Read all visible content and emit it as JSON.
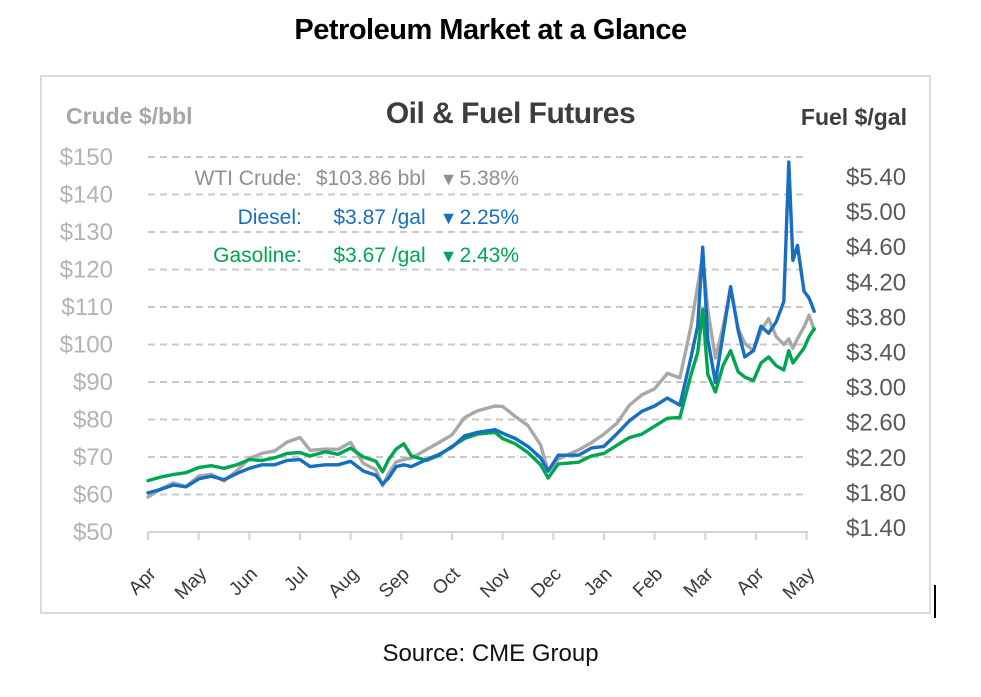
{
  "page": {
    "title": "Petroleum Market at a Glance",
    "source": "Source: CME Group"
  },
  "chart": {
    "title": "Oil & Fuel Futures",
    "left_axis_title": "Crude $/bbl",
    "right_axis_title": "Fuel $/gal",
    "legend": [
      {
        "name": "WTI Crude:",
        "value": "$103.86 bbl",
        "arrow": "▼",
        "change": "5.38%",
        "color": "#8f8f8f"
      },
      {
        "name": "Diesel:",
        "value": "$3.87 /gal",
        "arrow": "▼",
        "change": "2.25%",
        "color": "#176fc1"
      },
      {
        "name": "Gasoline:",
        "value": "$3.67 /gal",
        "arrow": "▼",
        "change": "2.43%",
        "color": "#00a551"
      }
    ]
  },
  "chart_data": {
    "type": "line",
    "title": "Oil & Fuel Futures",
    "subtitle": "Petroleum Market at a Glance",
    "source": "Source: CME Group",
    "x_tick_labels": [
      "Apr",
      "May",
      "Jun",
      "Jul",
      "Aug",
      "Sep",
      "Oct",
      "Nov",
      "Dec",
      "Jan",
      "Feb",
      "Mar",
      "Apr",
      "May"
    ],
    "x_unit": "months (Apr 2021 – May 2022)",
    "left_axis": {
      "label": "Crude $/bbl",
      "min": 50,
      "max": 150,
      "grid": true,
      "ticks": [
        "$150",
        "$140",
        "$130",
        "$120",
        "$110",
        "$100",
        "$90",
        "$80",
        "$70",
        "$60",
        "$50"
      ]
    },
    "right_axis": {
      "label": "Fuel $/gal",
      "min": 1.4,
      "max": 5.4,
      "ticks": [
        "$5.40",
        "$5.00",
        "$4.60",
        "$4.20",
        "$3.80",
        "$3.40",
        "$3.00",
        "$2.60",
        "$2.20",
        "$1.80",
        "$1.40"
      ]
    },
    "colors": {
      "wti": "#a8a8a8",
      "diesel": "#176fc1",
      "gasoline": "#00a551",
      "grid": "#c9c9c9",
      "axis": "#d4d4d4"
    },
    "x_months": [
      0,
      0.25,
      0.5,
      0.75,
      1,
      1.25,
      1.5,
      1.75,
      2,
      2.25,
      2.5,
      2.75,
      3,
      3.2,
      3.5,
      3.75,
      4,
      4.25,
      4.5,
      4.63,
      4.75,
      4.9,
      5.05,
      5.2,
      5.5,
      5.75,
      6,
      6.25,
      6.5,
      6.85,
      7,
      7.25,
      7.5,
      7.75,
      7.9,
      8.1,
      8.5,
      8.75,
      9,
      9.25,
      9.5,
      9.75,
      10,
      10.25,
      10.5,
      10.72,
      10.85,
      10.95,
      11.05,
      11.2,
      11.35,
      11.5,
      11.65,
      11.78,
      11.95,
      12.1,
      12.25,
      12.4,
      12.55,
      12.65,
      12.73,
      12.82,
      12.95,
      13.05,
      13.15
    ],
    "series": [
      {
        "name": "WTI Crude",
        "axis": "left",
        "unit": "$/bbl",
        "last": 103.86,
        "change_pct": -5.38,
        "color": "#a8a8a8",
        "values": [
          59.3,
          61.5,
          63.1,
          62.1,
          64.9,
          65.4,
          63.6,
          66.3,
          69.6,
          71.0,
          71.6,
          74.0,
          75.2,
          71.8,
          72.1,
          72.0,
          73.9,
          68.3,
          66.6,
          62.3,
          65.6,
          68.7,
          69.3,
          69.7,
          72.0,
          73.9,
          75.9,
          80.5,
          82.3,
          83.6,
          83.5,
          80.8,
          78.4,
          73.2,
          66.2,
          69.5,
          71.9,
          73.8,
          76.1,
          78.9,
          83.8,
          86.6,
          88.2,
          92.3,
          91.1,
          105.0,
          115.7,
          123.7,
          109.3,
          96.4,
          104.7,
          114.9,
          104.2,
          100.3,
          98.3,
          103.7,
          106.9,
          102.1,
          100.0,
          101.5,
          99.0,
          101.6,
          104.7,
          107.8,
          103.9
        ]
      },
      {
        "name": "Diesel",
        "axis": "right",
        "unit": "$/gal",
        "last": 3.87,
        "change_pct": -2.25,
        "color": "#176fc1",
        "values": [
          1.8,
          1.84,
          1.89,
          1.87,
          1.96,
          1.99,
          1.95,
          2.02,
          2.08,
          2.12,
          2.12,
          2.17,
          2.18,
          2.1,
          2.12,
          2.12,
          2.16,
          2.05,
          2.0,
          1.9,
          1.97,
          2.1,
          2.12,
          2.1,
          2.18,
          2.24,
          2.32,
          2.45,
          2.49,
          2.52,
          2.48,
          2.42,
          2.33,
          2.2,
          2.05,
          2.23,
          2.23,
          2.31,
          2.33,
          2.47,
          2.62,
          2.73,
          2.79,
          2.88,
          2.8,
          3.35,
          3.7,
          4.6,
          3.55,
          3.06,
          3.6,
          4.15,
          3.65,
          3.35,
          3.42,
          3.7,
          3.62,
          3.75,
          3.98,
          5.57,
          4.45,
          4.62,
          4.1,
          4.02,
          3.87
        ]
      },
      {
        "name": "Gasoline",
        "axis": "right",
        "unit": "$/gal",
        "last": 3.67,
        "change_pct": -2.43,
        "color": "#00a551",
        "values": [
          1.94,
          1.98,
          2.01,
          2.03,
          2.09,
          2.11,
          2.08,
          2.12,
          2.18,
          2.17,
          2.2,
          2.25,
          2.26,
          2.22,
          2.27,
          2.24,
          2.31,
          2.21,
          2.16,
          2.04,
          2.18,
          2.3,
          2.36,
          2.22,
          2.17,
          2.23,
          2.33,
          2.42,
          2.47,
          2.49,
          2.42,
          2.36,
          2.26,
          2.12,
          1.97,
          2.13,
          2.15,
          2.22,
          2.25,
          2.34,
          2.43,
          2.47,
          2.56,
          2.65,
          2.66,
          3.15,
          3.4,
          3.89,
          3.15,
          2.95,
          3.25,
          3.42,
          3.18,
          3.12,
          3.08,
          3.28,
          3.35,
          3.25,
          3.2,
          3.42,
          3.28,
          3.35,
          3.45,
          3.58,
          3.67
        ]
      }
    ]
  }
}
